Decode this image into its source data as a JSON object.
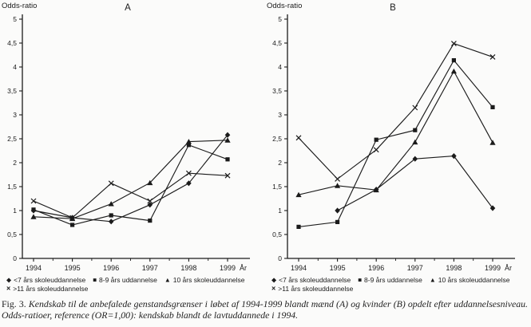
{
  "figure": {
    "caption_prefix": "Fig. 3.",
    "caption_text": "Kendskab til de anbefalede genstandsgrænser i løbet af 1994-1999 blandt mænd (A) og kvinder (B) opdelt efter uddannelsesniveau. Odds-ratioer, reference (OR=1,00): kendskab blandt de lavtuddannede i 1994."
  },
  "marker_glyphs": {
    "diamond": "◆",
    "square": "■",
    "triangle": "▲",
    "x": "×"
  },
  "axis": {
    "y_label": "Odds-ratio",
    "x_suffix": "År",
    "ylim": [
      0,
      5
    ],
    "y_tick_step": 0.5,
    "ink_color": "#1b1b1b"
  },
  "chart_data": [
    {
      "type": "line",
      "title": "A",
      "ylabel": "Odds-ratio",
      "xlabel": "År",
      "ylim": [
        0,
        5
      ],
      "grid": false,
      "x": [
        "1994",
        "1995",
        "1996",
        "1997",
        "1998",
        "1999"
      ],
      "series": [
        {
          "name": "<7 års skoleuddannelse",
          "marker": "diamond",
          "values": [
            1.0,
            0.85,
            0.77,
            1.12,
            1.57,
            2.58
          ]
        },
        {
          "name": "8-9 års uddannelse",
          "marker": "square",
          "values": [
            1.02,
            0.7,
            0.9,
            0.79,
            2.37,
            2.07
          ]
        },
        {
          "name": "10 års skoleuddannelse",
          "marker": "triangle",
          "values": [
            0.87,
            0.83,
            1.14,
            1.58,
            2.44,
            2.47
          ]
        },
        {
          "name": ">11 års skoleuddannelse",
          "marker": "x",
          "values": [
            1.2,
            0.85,
            1.57,
            1.2,
            1.78,
            1.73
          ]
        }
      ]
    },
    {
      "type": "line",
      "title": "B",
      "ylabel": "Odds-ratio",
      "xlabel": "År",
      "ylim": [
        0,
        5
      ],
      "grid": false,
      "x": [
        "1994",
        "1995",
        "1996",
        "1997",
        "1998",
        "1999"
      ],
      "series": [
        {
          "name": "<7 års skoleuddannelse",
          "marker": "diamond",
          "values": [
            null,
            1.0,
            1.44,
            2.08,
            2.14,
            1.05
          ]
        },
        {
          "name": "8-9 års uddannelse",
          "marker": "square",
          "values": [
            0.66,
            0.76,
            2.48,
            2.68,
            4.14,
            3.16
          ]
        },
        {
          "name": "10 års skoleuddannelse",
          "marker": "triangle",
          "values": [
            1.33,
            1.52,
            1.43,
            2.43,
            3.91,
            2.42
          ]
        },
        {
          "name": ">11 års skoleuddannelse",
          "marker": "x",
          "values": [
            2.52,
            1.66,
            2.27,
            3.15,
            4.49,
            4.21
          ]
        }
      ]
    }
  ]
}
